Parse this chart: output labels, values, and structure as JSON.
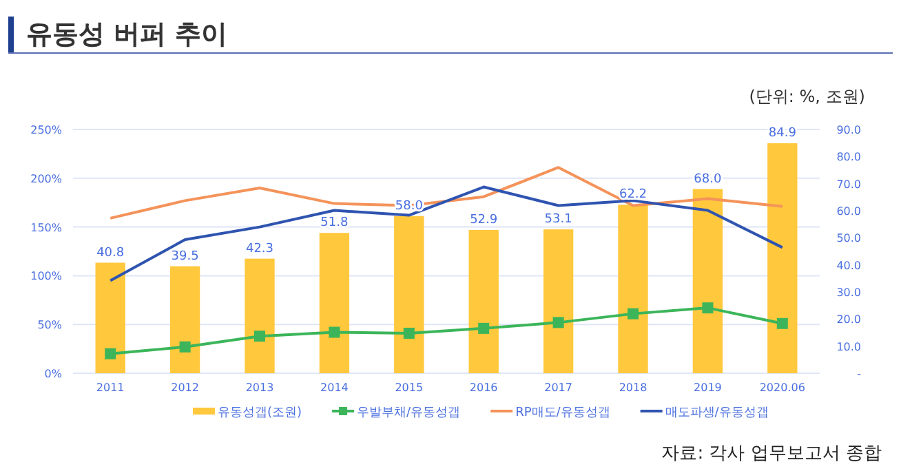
{
  "chart_data": {
    "type": "bar",
    "title": "유동성 버퍼 추이",
    "annotations": [
      "(단위:  %, 조원)",
      "자료: 각사 업무보고서 종합"
    ],
    "categories": [
      "2011",
      "2012",
      "2013",
      "2014",
      "2015",
      "2016",
      "2017",
      "2018",
      "2019",
      "2020.06"
    ],
    "series": [
      {
        "name": "유동성갭(조원)",
        "axis": "y2",
        "color": "#ffc83d",
        "values": [
          40.8,
          39.5,
          42.3,
          51.8,
          58.0,
          52.9,
          53.1,
          62.2,
          68.0,
          84.9
        ],
        "value_labels": [
          "40.8",
          "39.5",
          "42.3",
          "51.8",
          "58.0",
          "52.9",
          "53.1",
          "62.2",
          "68.0",
          "84.9"
        ]
      },
      {
        "name": "우발부채/유동성갭",
        "type": "line",
        "color": "#3cb55a",
        "marker": "square",
        "values": [
          20,
          27,
          38,
          42,
          41,
          46,
          52,
          61,
          67,
          51
        ]
      },
      {
        "name": "RP매도/유동성갭",
        "type": "line",
        "color": "#f4935a",
        "marker": "none",
        "values": [
          159,
          177,
          190,
          174,
          172,
          181,
          211,
          172,
          179,
          171
        ]
      },
      {
        "name": "매도파생/유동성갭",
        "type": "line",
        "color": "#2f54b0",
        "marker": "none",
        "values": [
          95,
          137,
          150,
          167,
          162,
          191,
          172,
          177,
          167,
          129
        ]
      }
    ],
    "ylim": [
      0,
      250
    ],
    "yticks": [
      {
        "value": 0,
        "label": "0%"
      },
      {
        "value": 50,
        "label": "50%"
      },
      {
        "value": 100,
        "label": "100%"
      },
      {
        "value": 150,
        "label": "150%"
      },
      {
        "value": 200,
        "label": "200%"
      },
      {
        "value": 250,
        "label": "250%"
      }
    ],
    "y2lim": [
      0,
      90
    ],
    "y2ticks": [
      {
        "value": 0,
        "label": "-"
      },
      {
        "value": 10,
        "label": "10.0"
      },
      {
        "value": 20,
        "label": "20.0"
      },
      {
        "value": 30,
        "label": "30.0"
      },
      {
        "value": 40,
        "label": "40.0"
      },
      {
        "value": 50,
        "label": "50.0"
      },
      {
        "value": 60,
        "label": "60.0"
      },
      {
        "value": 70,
        "label": "70.0"
      },
      {
        "value": 80,
        "label": "80.0"
      },
      {
        "value": 90,
        "label": "90.0"
      }
    ],
    "grid": "y",
    "legend": "bottom"
  }
}
